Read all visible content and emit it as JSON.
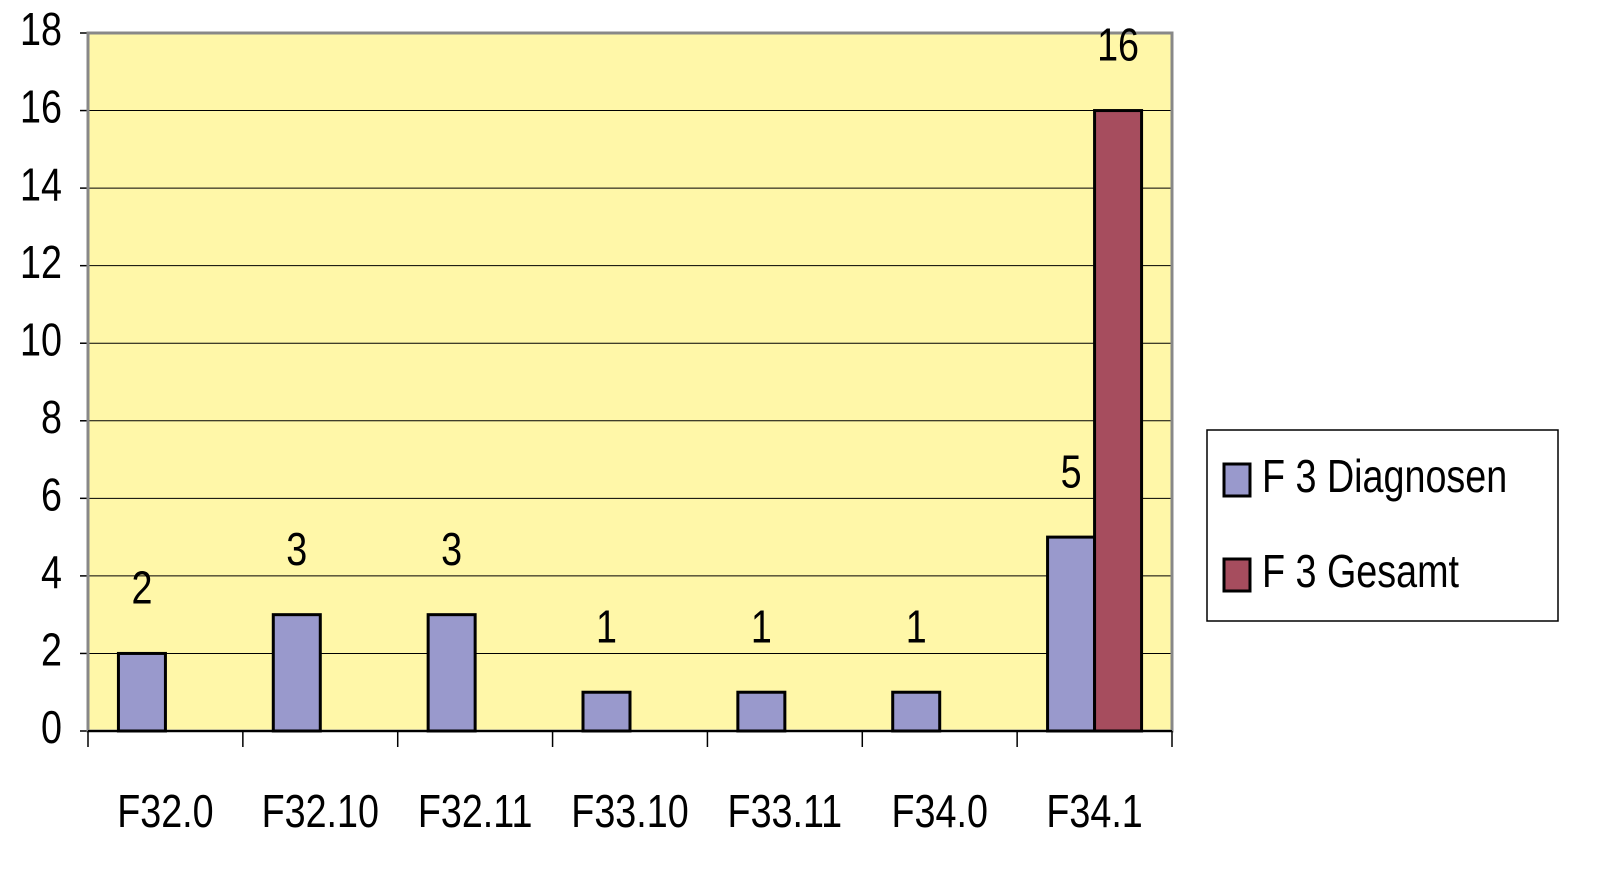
{
  "chart_data": {
    "type": "bar",
    "categories": [
      "F32.0",
      "F32.10",
      "F32.11",
      "F33.10",
      "F33.11",
      "F34.0",
      "F34.1"
    ],
    "series": [
      {
        "name": "F 3 Diagnosen",
        "color": "#9999cc",
        "values": [
          2,
          3,
          3,
          1,
          1,
          1,
          5
        ]
      },
      {
        "name": "F 3 Gesamt",
        "color": "#a64d5e",
        "values": [
          null,
          null,
          null,
          null,
          null,
          null,
          16
        ]
      }
    ],
    "ylim": [
      0,
      18
    ],
    "yticks": [
      0,
      2,
      4,
      6,
      8,
      10,
      12,
      14,
      16,
      18
    ],
    "grid": true,
    "plot_background": "#fff7a8",
    "legend": "right"
  }
}
